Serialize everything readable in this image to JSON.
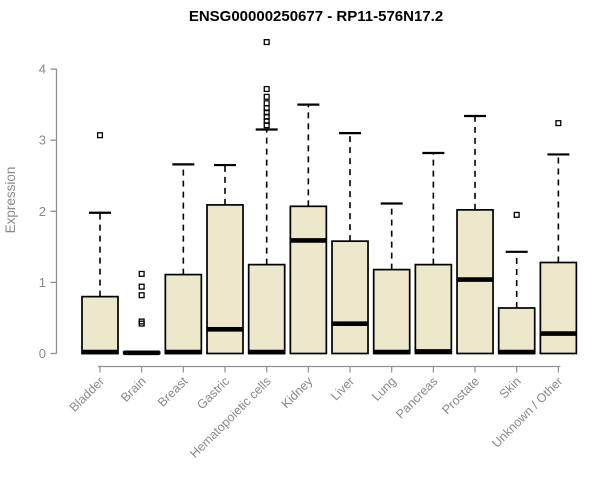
{
  "chart_data": {
    "type": "boxplot",
    "title": "ENSG00000250677 - RP11-576N17.2",
    "ylabel": "Expression",
    "xlabel": "",
    "ylim": [
      0,
      4.4
    ],
    "yticks": [
      0,
      1,
      2,
      3,
      4
    ],
    "grid": false,
    "legend": "none",
    "colors": {
      "box_fill": "#ede7cc",
      "box_stroke": "#000000",
      "median": "#000000",
      "whisker": "#000000",
      "outlier": "#000000",
      "axis": "#909090",
      "tick_label": "#8a8a8a",
      "title": "#000000",
      "background": "#ffffff"
    },
    "categories": [
      "Bladder",
      "Brain",
      "Breast",
      "Gastric",
      "Hematopoietic cells",
      "Kidney",
      "Liver",
      "Lung",
      "Pancreas",
      "Prostate",
      "Skin",
      "Unknown / Other"
    ],
    "boxes": [
      {
        "category": "Bladder",
        "whisker_low": 0,
        "q1": 0,
        "median": 0.02,
        "q3": 0.8,
        "whisker_high": 1.98,
        "outliers": [
          3.07
        ]
      },
      {
        "category": "Brain",
        "whisker_low": 0,
        "q1": 0,
        "median": 0.01,
        "q3": 0.02,
        "whisker_high": 0.02,
        "outliers": [
          0.42,
          0.45,
          0.82,
          0.94,
          1.12
        ]
      },
      {
        "category": "Breast",
        "whisker_low": 0,
        "q1": 0,
        "median": 0.02,
        "q3": 1.11,
        "whisker_high": 2.66,
        "outliers": []
      },
      {
        "category": "Gastric",
        "whisker_low": 0,
        "q1": 0,
        "median": 0.34,
        "q3": 2.09,
        "whisker_high": 2.65,
        "outliers": []
      },
      {
        "category": "Hematopoietic cells",
        "whisker_low": 0,
        "q1": 0,
        "median": 0.02,
        "q3": 1.25,
        "whisker_high": 3.15,
        "outliers": [
          3.21,
          3.27,
          3.33,
          3.39,
          3.45,
          3.52,
          3.61,
          3.72,
          4.38
        ]
      },
      {
        "category": "Kidney",
        "whisker_low": 0,
        "q1": 0,
        "median": 1.59,
        "q3": 2.07,
        "whisker_high": 3.5,
        "outliers": []
      },
      {
        "category": "Liver",
        "whisker_low": 0,
        "q1": 0,
        "median": 0.42,
        "q3": 1.58,
        "whisker_high": 3.1,
        "outliers": []
      },
      {
        "category": "Lung",
        "whisker_low": 0,
        "q1": 0,
        "median": 0.02,
        "q3": 1.18,
        "whisker_high": 2.11,
        "outliers": []
      },
      {
        "category": "Pancreas",
        "whisker_low": 0,
        "q1": 0,
        "median": 0.03,
        "q3": 1.25,
        "whisker_high": 2.82,
        "outliers": []
      },
      {
        "category": "Prostate",
        "whisker_low": 0,
        "q1": 0,
        "median": 1.04,
        "q3": 2.02,
        "whisker_high": 3.34,
        "outliers": []
      },
      {
        "category": "Skin",
        "whisker_low": 0,
        "q1": 0,
        "median": 0.02,
        "q3": 0.64,
        "whisker_high": 1.43,
        "outliers": [
          1.95
        ]
      },
      {
        "category": "Unknown / Other",
        "whisker_low": 0,
        "q1": 0,
        "median": 0.28,
        "q3": 1.28,
        "whisker_high": 2.8,
        "outliers": [
          3.24
        ]
      }
    ]
  }
}
